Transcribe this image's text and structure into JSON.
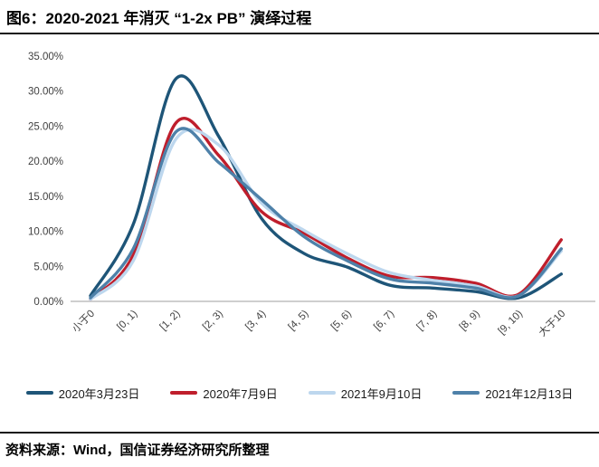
{
  "header": {
    "title": "图6：2020-2021 年消灭 “1-2x PB” 演绎过程"
  },
  "footer": {
    "source": "资料来源：Wind，国信证券经济研究所整理"
  },
  "chart_data": {
    "type": "line",
    "title": "图6：2020-2021 年消灭 “1-2x PB” 演绎过程",
    "xlabel": "",
    "ylabel": "",
    "ylim": [
      0,
      35
    ],
    "ytick_values": [
      0,
      5,
      10,
      15,
      20,
      25,
      30,
      35
    ],
    "ytick_labels": [
      "0.00%",
      "5.00%",
      "10.00%",
      "15.00%",
      "20.00%",
      "25.00%",
      "30.00%",
      "35.00%"
    ],
    "grid": false,
    "legend_position": "bottom",
    "xlabel_rotation": 45,
    "axis_color": "#bfbfbf",
    "tick_text_color": "#404040",
    "categories": [
      "小于0",
      "[0, 1)",
      "[1, 2)",
      "[2, 3)",
      "[3, 4)",
      "[4, 5)",
      "[5, 6)",
      "[6, 7)",
      "[7, 8)",
      "[8, 9)",
      "[9, 10)",
      "大于10"
    ],
    "series": [
      {
        "name": "2020年3月23日",
        "color": "#1e5578",
        "values": [
          0.8,
          11.0,
          31.8,
          23.5,
          11.8,
          6.8,
          4.9,
          2.3,
          1.9,
          1.4,
          0.5,
          3.9
        ]
      },
      {
        "name": "2020年7月9日",
        "color": "#bf1e2c",
        "values": [
          0.3,
          6.6,
          25.5,
          20.8,
          12.8,
          9.7,
          6.2,
          3.6,
          3.4,
          2.6,
          1.0,
          8.8
        ]
      },
      {
        "name": "2021年9月10日",
        "color": "#bdd7ee",
        "values": [
          0.3,
          5.8,
          23.2,
          22.3,
          14.0,
          10.1,
          6.8,
          4.1,
          3.0,
          2.2,
          0.8,
          7.2
        ]
      },
      {
        "name": "2021年12月13日",
        "color": "#4e81a9",
        "values": [
          0.5,
          7.5,
          24.2,
          19.8,
          14.5,
          9.2,
          5.8,
          3.2,
          2.6,
          1.9,
          0.8,
          7.5
        ]
      }
    ]
  }
}
